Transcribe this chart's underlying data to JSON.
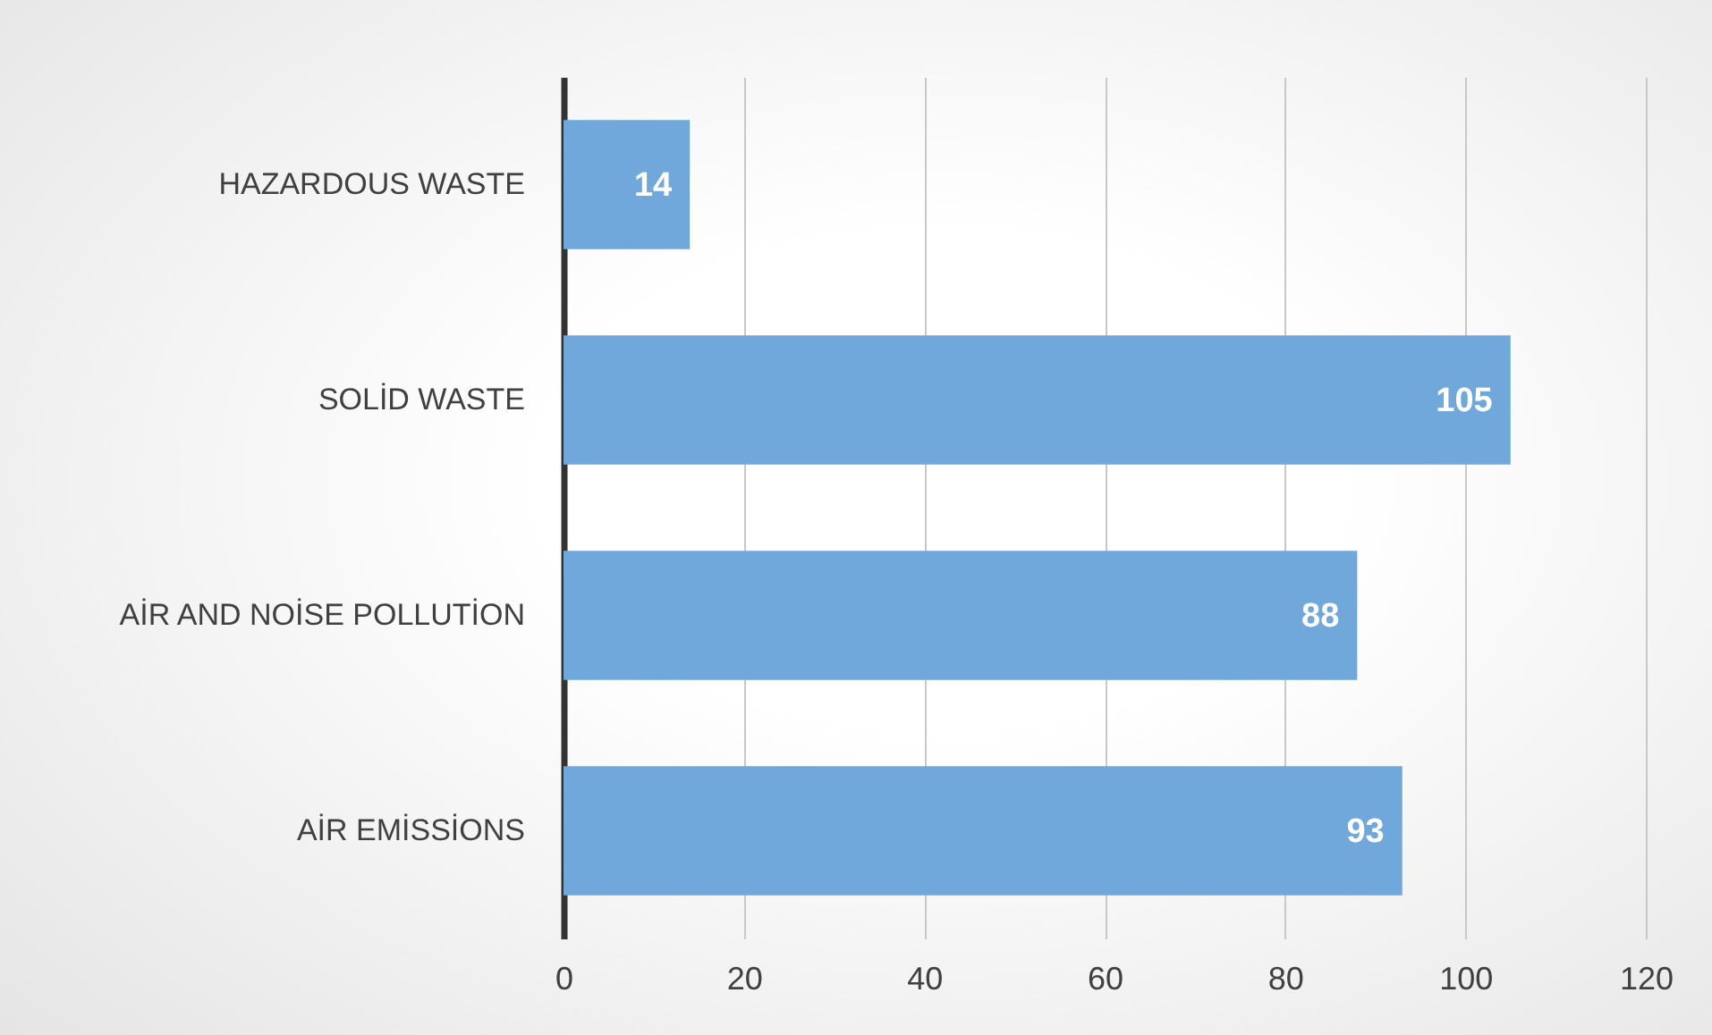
{
  "chart_data": {
    "type": "bar",
    "orientation": "horizontal",
    "categories": [
      "HAZARDOUS WASTE",
      "SOLİD WASTE",
      "AİR AND NOİSE POLLUTİON",
      "AİR EMİSSİONS"
    ],
    "values": [
      14,
      105,
      88,
      93
    ],
    "color": "#70a8db",
    "xlim": [
      0,
      120
    ],
    "xticks": [
      0,
      20,
      40,
      60,
      80,
      100,
      120
    ],
    "grid": "x",
    "data_labels": true
  }
}
